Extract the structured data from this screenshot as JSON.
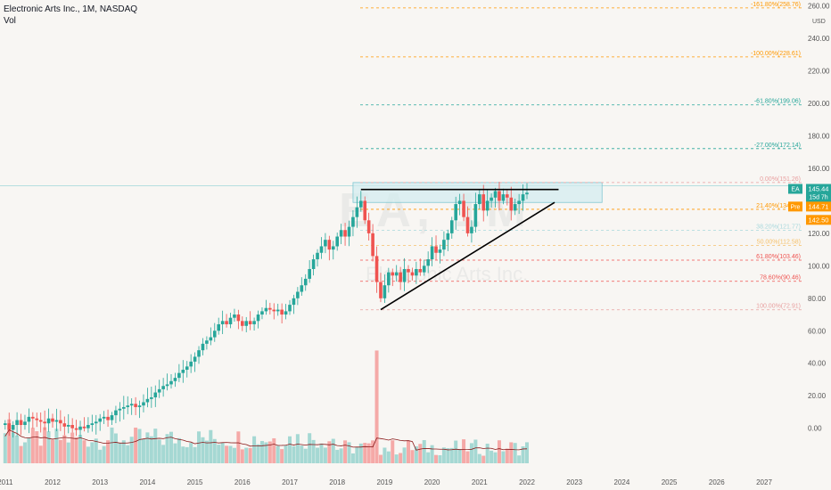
{
  "header": {
    "title": "Electronic Arts Inc., 1M, NASDAQ",
    "volume_label": "Vol"
  },
  "colors": {
    "up": "#26a69a",
    "down": "#ef5350",
    "up_vol": "#a5d8d3",
    "down_vol": "#f5a9a7",
    "volume_ma": "#8b1a1a",
    "trendline": "#000000",
    "current_price": "#26a69a",
    "premarket": "#ff9800",
    "zone_fill": "#d2ecf0",
    "zone_stroke": "#7fc7d2"
  },
  "chart_data": {
    "type": "candlestick",
    "symbol": "EA",
    "interval": "1M",
    "exchange": "NASDAQ",
    "x_ticks": [
      "2011",
      "2012",
      "2013",
      "2014",
      "2015",
      "2016",
      "2017",
      "2018",
      "2019",
      "2020",
      "2021",
      "2022",
      "2023",
      "2024",
      "2025",
      "2026",
      "2027"
    ],
    "y_ticks": [
      0.0,
      20.0,
      40.0,
      60.0,
      80.0,
      100.0,
      120.0,
      140.0,
      160.0,
      180.0,
      200.0,
      220.0,
      240.0,
      260.0
    ],
    "y_unit": "USD",
    "ylim": [
      -15,
      262
    ],
    "price_tags": [
      {
        "label": "EA",
        "value": "145.44",
        "sub": "15d 7h",
        "color": "#26a69a"
      },
      {
        "label": "Pre",
        "value": "144.71",
        "color": "#ff9800"
      },
      {
        "label": "",
        "value": "142.50",
        "color": "#ff9800"
      }
    ],
    "fib_levels": [
      {
        "label": "-161.80%(258.76)",
        "value": 258.76,
        "color": "#ff9800"
      },
      {
        "label": "-100.00%(228.61)",
        "value": 228.61,
        "color": "#ff9800"
      },
      {
        "label": "-61.80%(199.06)",
        "value": 199.06,
        "color": "#26a69a"
      },
      {
        "label": "-27.00%(172.14)",
        "value": 172.14,
        "color": "#26a69a"
      },
      {
        "label": "0.00%(151.26)",
        "value": 151.26,
        "color": "#e8a0a0"
      },
      {
        "label": "21.40%(134.79)",
        "value": 134.79,
        "color": "#ff9800"
      },
      {
        "label": "38.20%(121.77)",
        "value": 121.77,
        "color": "#a8d8dc"
      },
      {
        "label": "50.00%(112.58)",
        "value": 112.58,
        "color": "#f5c16c"
      },
      {
        "label": "61.80%(103.46)",
        "value": 103.46,
        "color": "#ef5350"
      },
      {
        "label": "78.60%(90.46)",
        "value": 90.46,
        "color": "#ef5350"
      },
      {
        "label": "100.00%(72.91)",
        "value": 72.91,
        "color": "#e8a0a0"
      }
    ],
    "resistance": {
      "from": "2018-07",
      "to": "2022-09",
      "value": 147
    },
    "zone": {
      "from": "2018-05",
      "to": "2023-08",
      "top": 151.26,
      "bottom": 139
    },
    "support_line": [
      {
        "date": "2018-12",
        "value": 73
      },
      {
        "date": "2022-08",
        "value": 139
      }
    ],
    "volume_scale_max": 55,
    "monthly_open_close": [
      [
        2011,
        [
          [
            2,
            3
          ],
          [
            3,
            -1
          ]
        ],
        [
          [
            -1,
            2
          ],
          [
            2,
            5
          ],
          [
            5,
            2
          ],
          [
            2,
            4
          ],
          [
            4,
            7
          ],
          [
            7,
            6
          ],
          [
            6,
            5
          ],
          [
            5,
            4
          ],
          [
            4,
            3
          ],
          [
            3,
            6
          ]
        ]
      ],
      [
        2012,
        [
          [
            6,
            4
          ],
          [
            4,
            5
          ],
          [
            5,
            3
          ],
          [
            3,
            1
          ],
          [
            1,
            2
          ],
          [
            2,
            0
          ],
          [
            0,
            -1
          ],
          [
            -1,
            1
          ],
          [
            1,
            0
          ],
          [
            0,
            2
          ],
          [
            2,
            3
          ],
          [
            3,
            4
          ]
        ]
      ],
      [
        2013,
        [
          [
            4,
            6
          ],
          [
            6,
            7
          ],
          [
            7,
            5
          ],
          [
            5,
            8
          ],
          [
            8,
            11
          ],
          [
            11,
            12
          ],
          [
            12,
            13
          ],
          [
            13,
            14
          ],
          [
            14,
            15
          ],
          [
            15,
            13
          ],
          [
            13,
            14
          ],
          [
            14,
            16
          ]
        ]
      ],
      [
        2014,
        [
          [
            16,
            18
          ],
          [
            18,
            19
          ],
          [
            19,
            22
          ],
          [
            22,
            24
          ],
          [
            24,
            26
          ],
          [
            26,
            27
          ],
          [
            27,
            29
          ],
          [
            29,
            31
          ],
          [
            31,
            34
          ],
          [
            34,
            36
          ],
          [
            36,
            38
          ],
          [
            38,
            41
          ]
        ]
      ],
      [
        2015,
        [
          [
            41,
            44
          ],
          [
            44,
            48
          ],
          [
            48,
            52
          ],
          [
            52,
            54
          ],
          [
            54,
            56
          ],
          [
            56,
            60
          ],
          [
            60,
            64
          ],
          [
            64,
            66
          ],
          [
            66,
            64
          ],
          [
            64,
            68
          ],
          [
            68,
            70
          ],
          [
            70,
            66
          ]
        ]
      ],
      [
        2016,
        [
          [
            66,
            63
          ],
          [
            63,
            66
          ],
          [
            66,
            64
          ],
          [
            64,
            66
          ],
          [
            66,
            70
          ],
          [
            70,
            72
          ],
          [
            72,
            74
          ],
          [
            74,
            73
          ],
          [
            73,
            72
          ],
          [
            72,
            73
          ],
          [
            73,
            70
          ],
          [
            70,
            72
          ]
        ]
      ],
      [
        2017,
        [
          [
            72,
            76
          ],
          [
            76,
            80
          ],
          [
            80,
            84
          ],
          [
            84,
            88
          ],
          [
            88,
            92
          ],
          [
            92,
            98
          ],
          [
            98,
            104
          ],
          [
            104,
            108
          ],
          [
            108,
            112
          ],
          [
            112,
            116
          ],
          [
            116,
            110
          ],
          [
            110,
            112
          ]
        ]
      ],
      [
        2018,
        [
          [
            112,
            118
          ],
          [
            118,
            122
          ],
          [
            122,
            118
          ],
          [
            118,
            124
          ],
          [
            124,
            130
          ],
          [
            130,
            136
          ],
          [
            136,
            140
          ],
          [
            140,
            128
          ],
          [
            128,
            120
          ],
          [
            120,
            106
          ],
          [
            106,
            90
          ],
          [
            90,
            80
          ]
        ]
      ],
      [
        2019,
        [
          [
            80,
            88
          ],
          [
            88,
            96
          ],
          [
            96,
            94
          ],
          [
            94,
            96
          ],
          [
            96,
            90
          ],
          [
            90,
            98
          ],
          [
            98,
            96
          ],
          [
            96,
            94
          ],
          [
            94,
            98
          ],
          [
            98,
            96
          ],
          [
            96,
            100
          ],
          [
            100,
            104
          ]
        ]
      ],
      [
        2020,
        [
          [
            104,
            112
          ],
          [
            112,
            108
          ],
          [
            108,
            110
          ],
          [
            110,
            116
          ],
          [
            116,
            120
          ],
          [
            120,
            128
          ],
          [
            128,
            138
          ],
          [
            138,
            140
          ],
          [
            140,
            130
          ],
          [
            130,
            120
          ],
          [
            120,
            124
          ],
          [
            124,
            138
          ]
        ]
      ],
      [
        2021,
        [
          [
            138,
            144
          ],
          [
            144,
            134
          ],
          [
            134,
            140
          ],
          [
            140,
            142
          ],
          [
            142,
            146
          ],
          [
            146,
            140
          ],
          [
            140,
            144
          ],
          [
            144,
            142
          ],
          [
            142,
            134
          ],
          [
            134,
            138
          ],
          [
            138,
            140
          ],
          [
            140,
            144
          ]
        ]
      ],
      [
        2022,
        [
          [
            144,
            145
          ]
        ]
      ]
    ]
  }
}
